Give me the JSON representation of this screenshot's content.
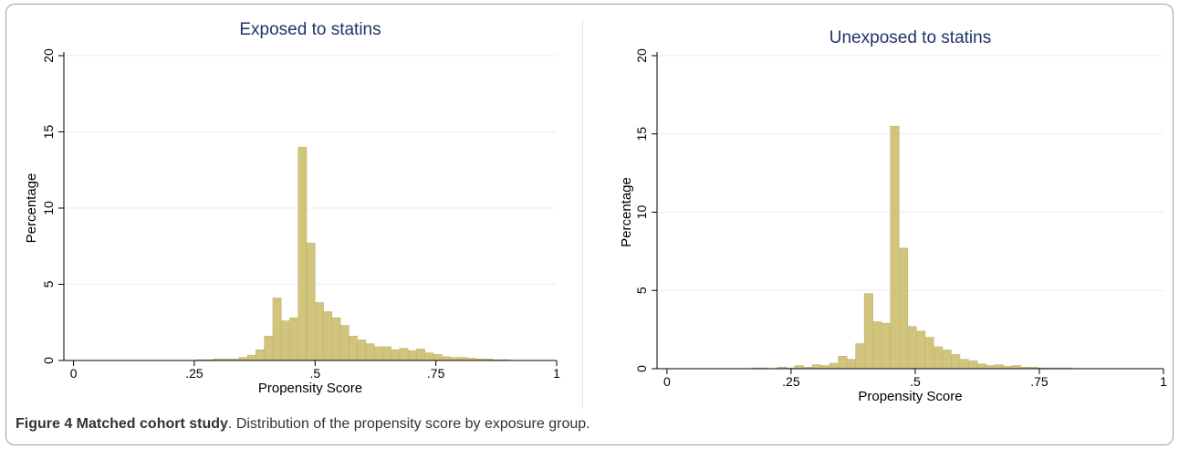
{
  "colors": {
    "bar_fill": "#d1c57e",
    "bar_stroke": "#c1b46d",
    "title": "#1e3566",
    "grid": "#e9eef2",
    "axis": "#000000"
  },
  "caption": {
    "label": "Figure 4 Matched cohort study",
    "text": ". Distribution of the propensity score by exposure group."
  },
  "chart_data": [
    {
      "type": "bar",
      "title": "Exposed to statins",
      "xlabel": "Propensity Score",
      "ylabel": "Percentage",
      "xlim": [
        -0.02,
        1.0
      ],
      "ylim": [
        0,
        20
      ],
      "xticks": [
        0,
        0.25,
        0.5,
        0.75,
        1
      ],
      "xtick_labels": [
        "0",
        ".25",
        ".5",
        ".75",
        "1"
      ],
      "yticks": [
        0,
        5,
        10,
        15,
        20
      ],
      "ytick_labels": [
        "0",
        "5",
        "10",
        "15",
        "20"
      ],
      "grid": true,
      "bin_width": 0.0175,
      "bin_start": 0.255,
      "values": [
        0.05,
        0.05,
        0.1,
        0.1,
        0.1,
        0.2,
        0.35,
        0.7,
        1.6,
        4.1,
        2.6,
        2.8,
        14.0,
        7.7,
        3.8,
        3.2,
        2.8,
        2.3,
        1.6,
        1.35,
        1.1,
        0.9,
        0.9,
        0.7,
        0.8,
        0.65,
        0.75,
        0.5,
        0.4,
        0.25,
        0.2,
        0.2,
        0.15,
        0.1,
        0.1,
        0.05,
        0.05
      ]
    },
    {
      "type": "bar",
      "title": "Unexposed to statins",
      "xlabel": "Propensity Score",
      "ylabel": "Percentage",
      "xlim": [
        -0.02,
        1.0
      ],
      "ylim": [
        0,
        20
      ],
      "xticks": [
        0,
        0.25,
        0.5,
        0.75,
        1
      ],
      "xtick_labels": [
        "0",
        ".25",
        ".5",
        ".75",
        "1"
      ],
      "yticks": [
        0,
        5,
        10,
        15,
        20
      ],
      "ytick_labels": [
        "0",
        "5",
        "10",
        "15",
        "20"
      ],
      "grid": true,
      "bin_width": 0.0175,
      "bin_start": 0.17,
      "values": [
        0.05,
        0.05,
        0.0,
        0.1,
        0.05,
        0.2,
        0.1,
        0.25,
        0.2,
        0.35,
        0.8,
        0.6,
        1.6,
        4.8,
        3.0,
        2.9,
        15.5,
        7.7,
        2.7,
        2.4,
        2.0,
        1.4,
        1.2,
        0.9,
        0.6,
        0.5,
        0.3,
        0.2,
        0.25,
        0.15,
        0.2,
        0.1,
        0.1,
        0.05,
        0.05,
        0.05,
        0.05
      ]
    }
  ]
}
